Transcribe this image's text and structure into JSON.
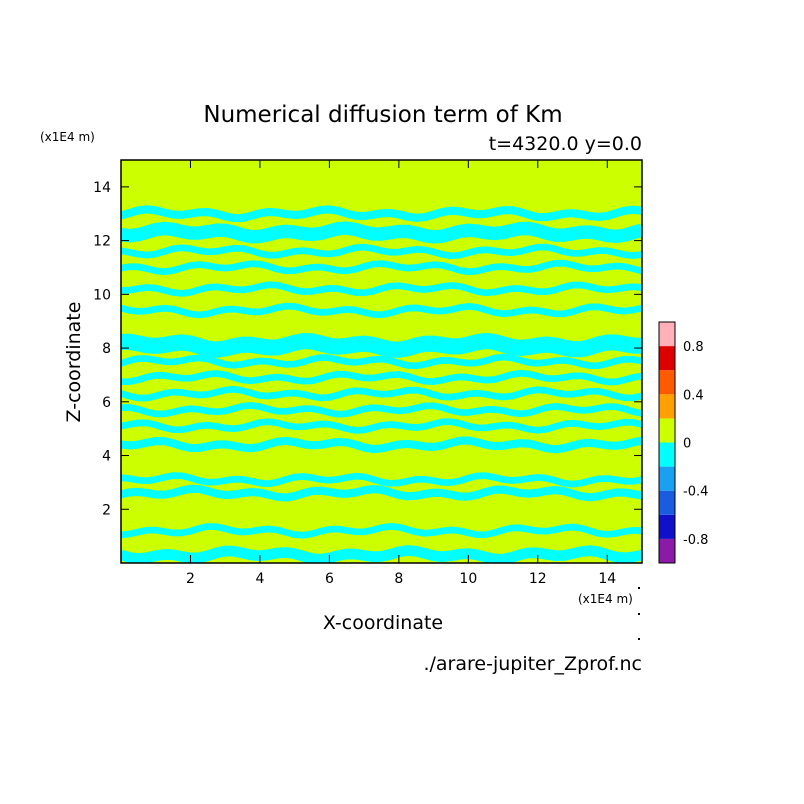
{
  "chart_data": {
    "type": "heatmap",
    "title": "Numerical diffusion term of Km",
    "subtitle": "t=4320.0 y=0.0",
    "xlabel": "X-coordinate",
    "ylabel": "Z-coordinate",
    "x_unit": "(x1E4 m)",
    "y_unit": "(x1E4 m)",
    "source_file": "./arare-jupiter_Zprof.nc",
    "xlim": [
      0,
      15
    ],
    "ylim": [
      0,
      15
    ],
    "x_ticks": [
      2,
      4,
      6,
      8,
      10,
      12,
      14
    ],
    "y_ticks": [
      2,
      4,
      6,
      8,
      10,
      12,
      14
    ],
    "colorbar": {
      "levels": [
        -1.0,
        -0.8,
        -0.6,
        -0.4,
        -0.2,
        0.0,
        0.2,
        0.4,
        0.6,
        0.8,
        1.0
      ],
      "colors": [
        "#8b1aa8",
        "#1010c8",
        "#1a5ce0",
        "#1aa0f0",
        "#00ffff",
        "#ccff00",
        "#ffa000",
        "#ff5a00",
        "#dd0000",
        "#ffb0b8"
      ],
      "tick_labels": [
        "-0.8",
        "-0.4",
        "0",
        "0.4",
        "0.8"
      ],
      "tick_values": [
        -0.8,
        -0.4,
        0.0,
        0.4,
        0.8
      ]
    },
    "background_value": 0.1,
    "bands": [
      {
        "z": 0.3,
        "value": -0.1,
        "width": 0.4
      },
      {
        "z": 1.2,
        "value": -0.1,
        "width": 0.25
      },
      {
        "z": 2.6,
        "value": -0.1,
        "width": 0.3
      },
      {
        "z": 3.1,
        "value": -0.1,
        "width": 0.25
      },
      {
        "z": 4.4,
        "value": -0.1,
        "width": 0.3
      },
      {
        "z": 5.1,
        "value": -0.1,
        "width": 0.25
      },
      {
        "z": 5.7,
        "value": -0.1,
        "width": 0.25
      },
      {
        "z": 6.3,
        "value": -0.1,
        "width": 0.25
      },
      {
        "z": 6.9,
        "value": -0.1,
        "width": 0.25
      },
      {
        "z": 7.5,
        "value": -0.1,
        "width": 0.25
      },
      {
        "z": 8.1,
        "value": -0.1,
        "width": 0.6
      },
      {
        "z": 9.4,
        "value": -0.1,
        "width": 0.25
      },
      {
        "z": 10.2,
        "value": -0.1,
        "width": 0.25
      },
      {
        "z": 11.0,
        "value": -0.1,
        "width": 0.25
      },
      {
        "z": 11.6,
        "value": -0.1,
        "width": 0.25
      },
      {
        "z": 12.3,
        "value": -0.1,
        "width": 0.5
      },
      {
        "z": 13.0,
        "value": -0.1,
        "width": 0.3
      }
    ]
  }
}
